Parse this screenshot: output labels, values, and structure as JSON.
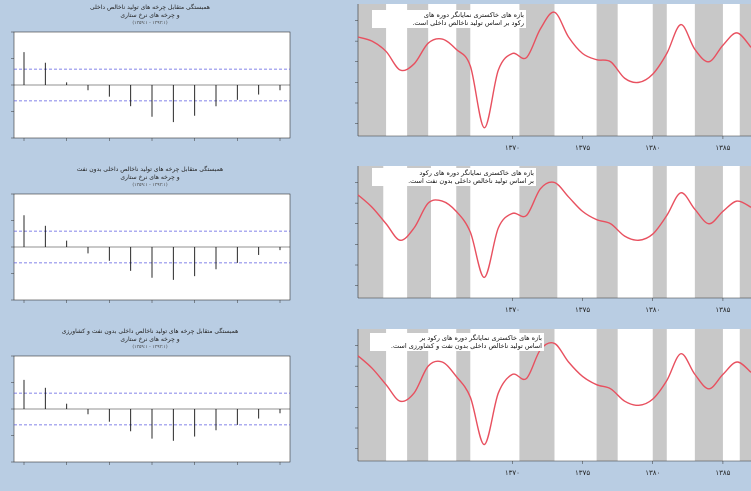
{
  "colors": {
    "page_background": "#b9cde3",
    "recession_band": "#c8c8c8",
    "cycle_line": "#e8505f",
    "acf_conf_line": "#5a5ae0"
  },
  "acf_panels": [
    {
      "title_line1": "همبستگی متقابل چرخه های تولید ناخالص داخلی",
      "title_line2": "و چرخه های نرخ ستاری",
      "subtitle": "(۱۳۵۹:۱ - ۱۳۹۳:۱)"
    },
    {
      "title_line1": "همبستگی متقابل چرخه های تولید ناخالص داخلی بدون نفت",
      "title_line2": "و چرخه های نرخ ستاری",
      "subtitle": "(۱۳۵۹:۱ - ۱۳۹۳:۱)"
    },
    {
      "title_line1": "همبستگی متقابل چرخه های تولید ناخالص داخلی بدون نفت و کشاورزی",
      "title_line2": "و چرخه های نرخ ستاری",
      "subtitle": "(۱۳۵۹:۱ - ۱۳۹۳:۱)"
    }
  ],
  "cycle_panels": [
    {
      "note_line1": "بازه های خاکستری نمایانگر دوره های",
      "note_line2": "رکود بر اساس تولید ناخالص داخلی است."
    },
    {
      "note_line1": "بازه های خاکستری نمایانگر دوره های رکود",
      "note_line2": "بر اساس تولید ناخالص داخلی بدون نفت است."
    },
    {
      "note_line1": "بازه های خاکستری نمایانگر دوره های رکود بر",
      "note_line2": "اساس تولید ناخالص داخلی بدون نفت و کشاورزی است."
    }
  ],
  "chart_data": [
    {
      "type": "bar",
      "description_of_values": "cross-correlation",
      "lags": [
        -8,
        -7,
        -6,
        -5,
        -4,
        -3,
        -2,
        -1,
        0,
        1,
        2,
        3,
        4
      ],
      "values": [
        0.62,
        0.42,
        0.05,
        -0.1,
        -0.22,
        -0.4,
        -0.6,
        -0.7,
        -0.58,
        -0.4,
        -0.28,
        -0.18,
        -0.1
      ],
      "confidence_band": [
        -0.3,
        0.3
      ],
      "ylim": [
        -1,
        1
      ]
    },
    {
      "type": "bar",
      "description_of_values": "cross-correlation",
      "lags": [
        -8,
        -7,
        -6,
        -5,
        -4,
        -3,
        -2,
        -1,
        0,
        1,
        2,
        3,
        4
      ],
      "values": [
        0.6,
        0.4,
        0.12,
        -0.12,
        -0.26,
        -0.45,
        -0.58,
        -0.62,
        -0.55,
        -0.42,
        -0.3,
        -0.15,
        -0.06
      ],
      "confidence_band": [
        -0.3,
        0.3
      ],
      "ylim": [
        -1,
        1
      ]
    },
    {
      "type": "bar",
      "description_of_values": "cross-correlation",
      "lags": [
        -8,
        -7,
        -6,
        -5,
        -4,
        -3,
        -2,
        -1,
        0,
        1,
        2,
        3,
        4
      ],
      "values": [
        0.55,
        0.4,
        0.1,
        -0.1,
        -0.24,
        -0.42,
        -0.56,
        -0.6,
        -0.52,
        -0.4,
        -0.3,
        -0.18,
        -0.08
      ],
      "confidence_band": [
        -0.3,
        0.3
      ],
      "ylim": [
        -1,
        1
      ]
    },
    {
      "type": "line",
      "x_ticks": [
        "۱۳۷۰",
        "۱۳۷۵",
        "۱۳۸۰",
        "۱۳۸۵"
      ],
      "x": [
        1359,
        1360,
        1361,
        1362,
        1363,
        1364,
        1365,
        1366,
        1367,
        1368,
        1369,
        1370,
        1371,
        1372,
        1373,
        1374,
        1375,
        1376,
        1377,
        1378,
        1379,
        1380,
        1381,
        1382,
        1383,
        1384,
        1385,
        1386,
        1387
      ],
      "y": [
        0.6,
        0.5,
        0.25,
        -0.2,
        -0.05,
        0.45,
        0.55,
        0.3,
        -0.1,
        -1.6,
        -0.2,
        0.2,
        0.1,
        0.8,
        1.2,
        0.6,
        0.2,
        0.05,
        0.0,
        -0.4,
        -0.5,
        -0.3,
        0.2,
        0.9,
        0.3,
        0.0,
        0.4,
        0.7,
        0.35
      ],
      "recession_bands_x": [
        [
          1359,
          1361
        ],
        [
          1362.5,
          1364
        ],
        [
          1366,
          1367
        ],
        [
          1370.5,
          1373
        ],
        [
          1376,
          1377.5
        ],
        [
          1380,
          1381
        ],
        [
          1383,
          1385
        ],
        [
          1386.2,
          1387
        ]
      ]
    },
    {
      "type": "line",
      "x_ticks": [
        "۱۳۷۰",
        "۱۳۷۵",
        "۱۳۸۰",
        "۱۳۸۵"
      ],
      "x": [
        1359,
        1360,
        1361,
        1362,
        1363,
        1364,
        1365,
        1366,
        1367,
        1368,
        1369,
        1370,
        1371,
        1372,
        1373,
        1374,
        1375,
        1376,
        1377,
        1378,
        1379,
        1380,
        1381,
        1382,
        1383,
        1384,
        1385,
        1386,
        1387
      ],
      "y": [
        0.7,
        0.4,
        0.0,
        -0.4,
        -0.1,
        0.5,
        0.55,
        0.3,
        -0.2,
        -1.3,
        -0.1,
        0.25,
        0.2,
        0.85,
        1.0,
        0.65,
        0.3,
        0.1,
        0.0,
        -0.3,
        -0.4,
        -0.25,
        0.2,
        0.75,
        0.35,
        0.0,
        0.3,
        0.55,
        0.4
      ],
      "recession_bands_x": [
        [
          1359,
          1360.8
        ],
        [
          1362.5,
          1364.2
        ],
        [
          1366,
          1367
        ],
        [
          1370.5,
          1373.2
        ],
        [
          1376,
          1377.5
        ],
        [
          1380,
          1381
        ],
        [
          1383,
          1385
        ],
        [
          1386.2,
          1387
        ]
      ]
    },
    {
      "type": "line",
      "x_ticks": [
        "۱۳۷۰",
        "۱۳۷۵",
        "۱۳۸۰",
        "۱۳۸۵"
      ],
      "x": [
        1359,
        1360,
        1361,
        1362,
        1363,
        1364,
        1365,
        1366,
        1367,
        1368,
        1369,
        1370,
        1371,
        1372,
        1373,
        1374,
        1375,
        1376,
        1377,
        1378,
        1379,
        1380,
        1381,
        1382,
        1383,
        1384,
        1385,
        1386,
        1387
      ],
      "y": [
        0.75,
        0.45,
        0.05,
        -0.35,
        -0.15,
        0.5,
        0.6,
        0.25,
        -0.25,
        -1.4,
        -0.15,
        0.3,
        0.2,
        0.9,
        1.05,
        0.6,
        0.25,
        0.05,
        -0.05,
        -0.35,
        -0.45,
        -0.3,
        0.15,
        0.8,
        0.3,
        -0.05,
        0.3,
        0.6,
        0.35
      ],
      "recession_bands_x": [
        [
          1359,
          1361
        ],
        [
          1362.5,
          1364
        ],
        [
          1366,
          1367
        ],
        [
          1370.5,
          1373
        ],
        [
          1376,
          1377.5
        ],
        [
          1380,
          1381
        ],
        [
          1383,
          1385
        ],
        [
          1386.2,
          1387
        ]
      ]
    }
  ]
}
